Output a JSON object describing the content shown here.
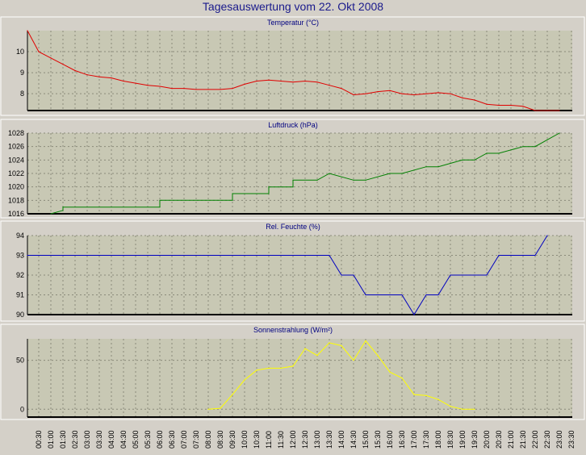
{
  "title": "Tagesauswertung vom 22. Okt 2008",
  "colors": {
    "background": "#d4d0c8",
    "plot_bg": "#c8c8b4",
    "grid": "#8a8a7a",
    "title": "#1a1a8c"
  },
  "chart_data": [
    {
      "type": "line",
      "title": "Temperatur (°C)",
      "color": "#e00000",
      "ylim": [
        7.2,
        11.0
      ],
      "yticks": [
        8,
        9,
        10
      ],
      "x": [
        0,
        0.5,
        1,
        1.5,
        2,
        2.5,
        3,
        3.5,
        4,
        4.5,
        5,
        5.5,
        6,
        6.5,
        7,
        7.5,
        8,
        8.5,
        9,
        9.5,
        10,
        10.5,
        11,
        11.5,
        12,
        12.5,
        13,
        13.5,
        14,
        14.5,
        15,
        15.5,
        16,
        16.5,
        17,
        17.5,
        18,
        18.5,
        19,
        19.5,
        20,
        20.5,
        21,
        21.5,
        22
      ],
      "y": [
        11.0,
        10.0,
        9.7,
        9.4,
        9.1,
        8.9,
        8.8,
        8.75,
        8.6,
        8.5,
        8.4,
        8.35,
        8.25,
        8.25,
        8.2,
        8.2,
        8.2,
        8.25,
        8.45,
        8.6,
        8.65,
        8.6,
        8.55,
        8.6,
        8.55,
        8.4,
        8.25,
        7.95,
        8.0,
        8.1,
        8.15,
        8.0,
        7.95,
        8.0,
        8.05,
        8.0,
        7.8,
        7.7,
        7.5,
        7.45,
        7.45,
        7.4,
        7.2,
        7.15,
        7.1
      ]
    },
    {
      "type": "line",
      "title": "Luftdruck (hPa)",
      "color": "#008000",
      "ylim": [
        1016,
        1028
      ],
      "yticks": [
        1016,
        1018,
        1020,
        1022,
        1024,
        1026,
        1028
      ],
      "x": [
        1,
        1.5,
        1.5,
        5.5,
        5.5,
        8.5,
        8.5,
        10,
        10,
        11,
        11,
        12,
        12.5,
        13.5,
        14,
        15,
        15.5,
        16.5,
        17,
        18,
        18.5,
        19,
        19.5,
        20.5,
        21,
        21.5,
        22
      ],
      "y": [
        1016,
        1016.5,
        1017,
        1017,
        1018,
        1018,
        1019,
        1019,
        1020,
        1020,
        1021,
        1021,
        1022,
        1021,
        1021,
        1022,
        1022,
        1023,
        1023,
        1024,
        1024,
        1025,
        1025,
        1026,
        1026,
        1027,
        1028
      ]
    },
    {
      "type": "line",
      "title": "Rel. Feuchte (%)",
      "color": "#0000c0",
      "ylim": [
        90,
        94
      ],
      "yticks": [
        90,
        91,
        92,
        93,
        94
      ],
      "x": [
        0,
        12.5,
        13,
        13.5,
        14,
        14.5,
        15,
        15.5,
        16,
        16.5,
        17,
        17.5,
        18,
        18.5,
        19,
        19.5,
        20,
        20.5,
        21,
        21.5
      ],
      "y": [
        93,
        93,
        92,
        92,
        91,
        91,
        91,
        91,
        90,
        91,
        91,
        92,
        92,
        92,
        92,
        93,
        93,
        93,
        93,
        94
      ]
    },
    {
      "type": "line",
      "title": "Sonnenstrahlung (W/m²)",
      "color": "#ffff00",
      "ylim": [
        -8,
        72
      ],
      "yticks": [
        0,
        50
      ],
      "x": [
        7.5,
        8,
        8.5,
        9,
        9.5,
        10,
        10.5,
        11,
        11.5,
        12,
        12.5,
        13,
        13.5,
        14,
        14.5,
        15,
        15.5,
        16,
        16.5,
        17,
        17.5,
        18,
        18.5
      ],
      "y": [
        0,
        1,
        15,
        30,
        40,
        42,
        42,
        44,
        62,
        55,
        68,
        65,
        50,
        70,
        55,
        38,
        32,
        15,
        14,
        10,
        3,
        0,
        0
      ]
    }
  ],
  "x_ticks": [
    "00:30",
    "01:00",
    "01:30",
    "02:30",
    "03:00",
    "03:30",
    "04:00",
    "04:30",
    "05:00",
    "05:30",
    "06:00",
    "06:30",
    "07:00",
    "07:30",
    "08:00",
    "08:30",
    "09:30",
    "10:00",
    "10:30",
    "11:00",
    "11:30",
    "12:00",
    "12:30",
    "13:00",
    "13:30",
    "14:00",
    "14:30",
    "15:00",
    "15:30",
    "16:00",
    "16:30",
    "17:00",
    "17:30",
    "18:00",
    "18:30",
    "19:00",
    "19:30",
    "20:00",
    "20:30",
    "21:00",
    "21:30",
    "22:00",
    "22:30",
    "23:00",
    "23:30"
  ]
}
